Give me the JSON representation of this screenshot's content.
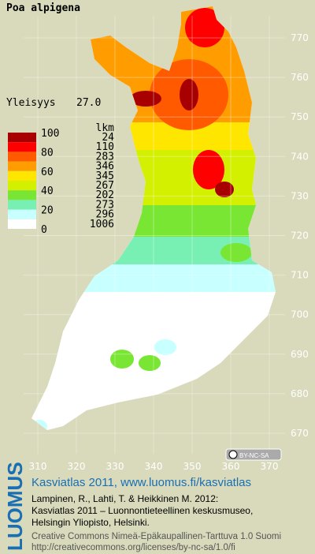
{
  "title": "Poa alpigena",
  "frequency": {
    "label": "Yleisyys",
    "value": "27.0"
  },
  "legend": {
    "count_header": "lkm",
    "scale_labels": [
      100,
      80,
      60,
      40,
      20,
      0
    ],
    "classes": [
      {
        "color": "#a80000",
        "count": 24
      },
      {
        "color": "#ff0000",
        "count": 110
      },
      {
        "color": "#ff5a00",
        "count": 283
      },
      {
        "color": "#ff9c00",
        "count": 346
      },
      {
        "color": "#ffe600",
        "count": 345
      },
      {
        "color": "#d2f000",
        "count": 267
      },
      {
        "color": "#78e632",
        "count": 202
      },
      {
        "color": "#78f0b4",
        "count": 273
      },
      {
        "color": "#c8ffff",
        "count": 296
      },
      {
        "color": "#ffffff",
        "count": 1006
      }
    ]
  },
  "axes": {
    "y_ticks": [
      770,
      760,
      750,
      740,
      730,
      720,
      710,
      700,
      690,
      680,
      670
    ],
    "x_ticks": [
      310,
      320,
      330,
      340,
      350,
      360,
      370
    ]
  },
  "license_badge": "BY-NC-SA",
  "footer": {
    "brand": "LUOMUS",
    "headline": "Kasviatlas 2011, www.luomus.fi/kasviatlas",
    "citation": [
      "Lampinen, R., Lahti, T. & Heikkinen M. 2012:",
      "Kasviatlas 2011 – Luonnontieteellinen keskusmuseo,",
      "Helsingin Yliopisto, Helsinki."
    ],
    "license": [
      "Creative Commons Nimeä-Epäkaupallinen-Tarttuva 1.0 Suomi",
      "http://creativecommons.org/licenses/by-nc-sa/1.0/fi"
    ]
  }
}
